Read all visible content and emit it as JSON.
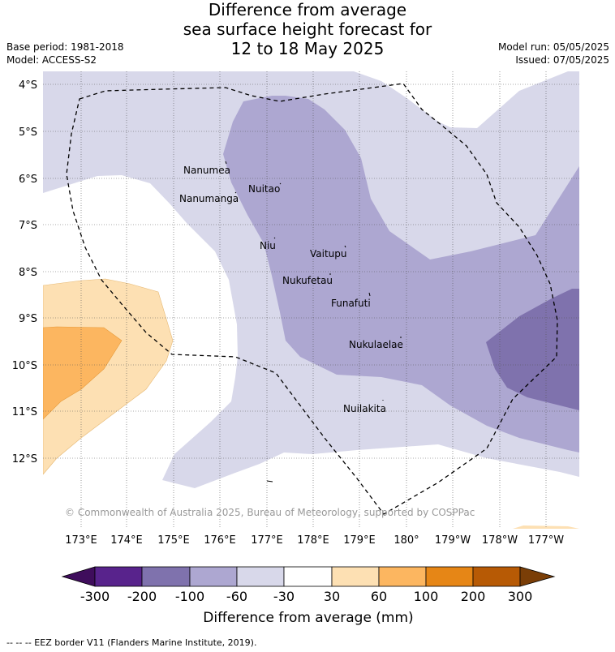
{
  "title": {
    "line1": "Difference from average",
    "line2": "sea surface height forecast for",
    "line3": "12 to 18 May 2025"
  },
  "meta": {
    "base_period": "Base period: 1981-2018",
    "model": "Model: ACCESS-S2",
    "model_run": "Model run: 05/05/2025",
    "issued": "Issued: 07/05/2025"
  },
  "map": {
    "lat_labels": [
      "4°S",
      "5°S",
      "6°S",
      "7°S",
      "8°S",
      "9°S",
      "10°S",
      "11°S",
      "12°S"
    ],
    "lon_labels": [
      "173°E",
      "174°E",
      "175°E",
      "176°E",
      "177°E",
      "178°E",
      "179°E",
      "180°",
      "179°W",
      "178°W",
      "177°W"
    ],
    "places": [
      {
        "name": "Nanumea"
      },
      {
        "name": "Nuitao"
      },
      {
        "name": "Nanumanga"
      },
      {
        "name": "Niu"
      },
      {
        "name": "Vaitupu"
      },
      {
        "name": "Nukufetau"
      },
      {
        "name": "Funafuti"
      },
      {
        "name": "Nukulaelae"
      },
      {
        "name": "Nuilakita"
      }
    ],
    "copyright": "© Commonwealth of Australia 2025, Bureau of Meteorology, supported by COSPPac",
    "colors": {
      "neg300": "#3f0d5c",
      "neg200": "#58238c",
      "neg100": "#7f72ad",
      "neg60": "#ada7d1",
      "neg30": "#d8d8ea",
      "zero": "#ffffff",
      "pos30": "#fde0b3",
      "pos60": "#fcb660",
      "pos100": "#e68616",
      "pos200": "#b75a05",
      "pos300": "#7a3e07"
    }
  },
  "colorbar": {
    "ticks": [
      "-300",
      "-200",
      "-100",
      "-60",
      "-30",
      "30",
      "60",
      "100",
      "200",
      "300"
    ],
    "label": "Difference from average (mm)"
  },
  "footer": "-- -- -- EEZ border V11 (Flanders Marine Institute, 2019)."
}
